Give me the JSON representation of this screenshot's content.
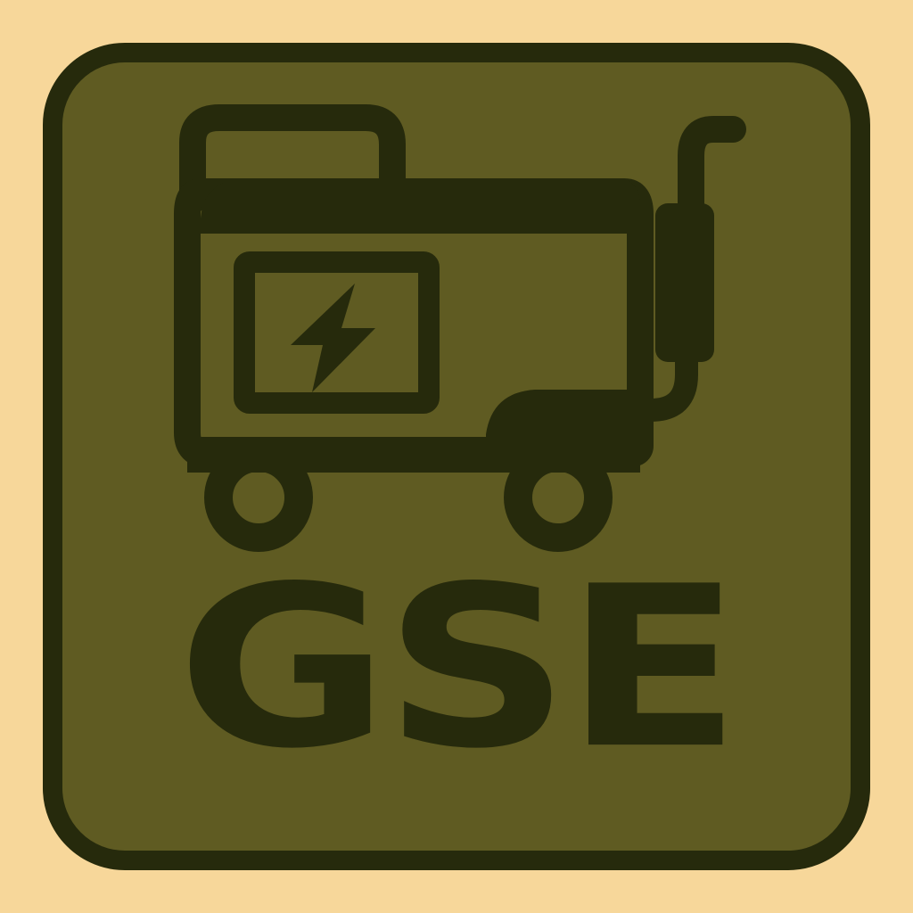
{
  "badge": {
    "label": "GSE",
    "icon": "generator-icon",
    "bolt_icon": "lightning-bolt-icon",
    "colors": {
      "background": "#f7d79a",
      "tile": "#5f5b22",
      "ink": "#262a0c"
    }
  }
}
